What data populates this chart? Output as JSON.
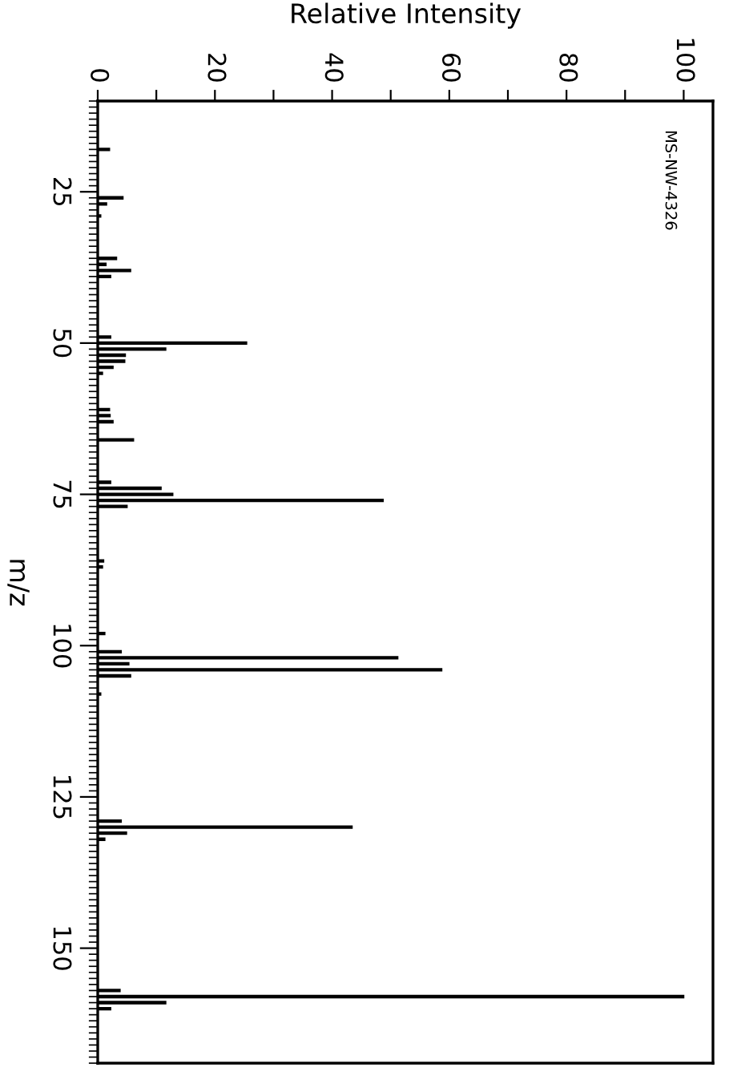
{
  "chart_data": {
    "type": "bar",
    "orientation": "horizontal",
    "xlabel": "Relative Intensity",
    "ylabel": "m/z",
    "annotations": [
      "MS-NW-4326"
    ],
    "x": [
      18,
      26,
      27,
      29,
      35,
      36,
      37,
      38,
      39,
      49,
      50,
      51,
      52,
      53,
      54,
      55,
      61,
      62,
      63,
      64,
      66,
      73,
      74,
      75,
      76,
      77,
      86,
      87,
      98,
      101,
      102,
      103,
      104,
      105,
      108,
      129,
      130,
      131,
      132,
      157,
      158,
      159,
      160
    ],
    "series": [
      {
        "color": "#000000",
        "values": [
          2,
          4.3,
          1.5,
          0.5,
          null,
          3.2,
          1.4,
          5.6,
          2.2,
          2.2,
          25.4,
          11.6,
          4.7,
          4.6,
          2.6,
          0.8,
          2,
          2.1,
          2.6,
          null,
          6.1,
          2.2,
          10.8,
          12.8,
          48.7,
          5,
          1,
          0.8,
          1.2,
          4,
          51.2,
          5.3,
          58.7,
          5.6,
          0.5,
          4,
          43.4,
          4.9,
          1.2,
          3.8,
          100,
          11.6,
          2.2
        ]
      }
    ],
    "xlim": [
      0,
      105
    ],
    "xticks": [
      0,
      {
        "value": 10,
        "label": null
      },
      20,
      {
        "value": 30,
        "label": null
      },
      40,
      {
        "value": 50,
        "label": null
      },
      60,
      {
        "value": 70,
        "label": null
      },
      80,
      {
        "value": 90,
        "label": null
      },
      100
    ],
    "ylim": [
      169,
      10
    ],
    "yticks": [
      25,
      50,
      75,
      100,
      125,
      150
    ],
    "grid": false,
    "legend": false
  }
}
